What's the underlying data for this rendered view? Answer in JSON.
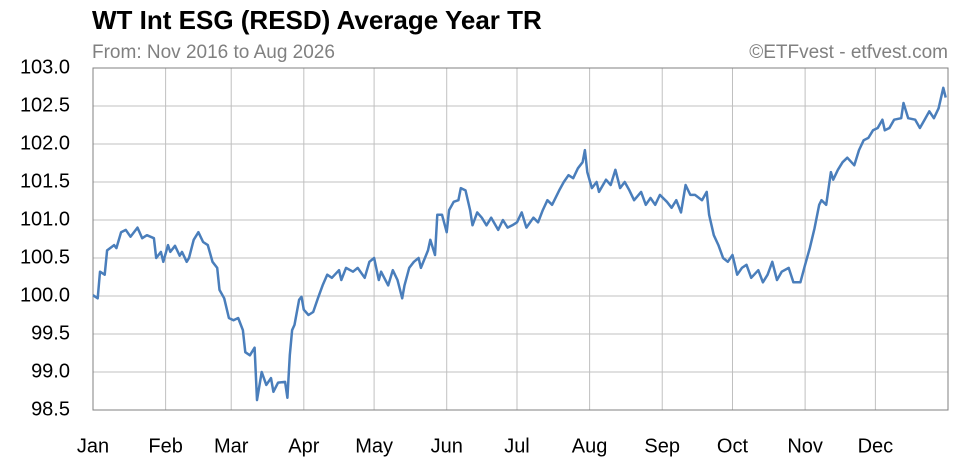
{
  "chart_data": {
    "type": "line",
    "title": "WT Int ESG (RESD) Average Year TR",
    "subtitle": "From: Nov 2016 to Aug 2026",
    "credit": "©ETFvest - etfvest.com",
    "xlim": [
      1,
      366
    ],
    "xticks": [
      {
        "value": 1,
        "label": "Jan"
      },
      {
        "value": 32,
        "label": "Feb"
      },
      {
        "value": 60,
        "label": "Mar"
      },
      {
        "value": 91,
        "label": "Apr"
      },
      {
        "value": 121,
        "label": "May"
      },
      {
        "value": 152,
        "label": "Jun"
      },
      {
        "value": 182,
        "label": "Jul"
      },
      {
        "value": 213,
        "label": "Aug"
      },
      {
        "value": 244,
        "label": "Sep"
      },
      {
        "value": 274,
        "label": "Oct"
      },
      {
        "value": 305,
        "label": "Nov"
      },
      {
        "value": 335,
        "label": "Dec"
      }
    ],
    "ylim": [
      98.5,
      103
    ],
    "yticks": [
      98.5,
      {
        "value": 99,
        "label": "99.0"
      },
      99.5,
      {
        "value": 100,
        "label": "100.0"
      },
      100.5,
      {
        "value": 101,
        "label": "101.0"
      },
      101.5,
      {
        "value": 102,
        "label": "102.0"
      },
      102.5,
      {
        "value": 103,
        "label": "103.0"
      }
    ],
    "grid": true,
    "x": [
      1,
      3,
      4,
      6,
      7,
      10,
      11,
      13,
      15,
      17,
      20,
      22,
      24,
      27,
      28,
      30,
      31,
      33,
      34,
      36,
      38,
      39,
      41,
      42,
      44,
      46,
      48,
      50,
      52,
      54,
      55,
      57,
      59,
      61,
      63,
      65,
      66,
      68,
      70,
      71,
      73,
      75,
      77,
      78,
      80,
      83,
      84,
      85,
      86,
      87,
      89,
      90,
      91,
      93,
      95,
      97,
      99,
      101,
      103,
      106,
      107,
      109,
      112,
      114,
      117,
      119,
      121,
      123,
      124,
      127,
      129,
      131,
      133,
      134,
      136,
      138,
      140,
      141,
      144,
      145,
      147,
      148,
      150,
      152,
      153,
      155,
      157,
      158,
      160,
      162,
      163,
      165,
      167,
      169,
      171,
      174,
      176,
      178,
      180,
      182,
      184,
      186,
      189,
      191,
      193,
      195,
      197,
      200,
      202,
      204,
      206,
      208,
      210,
      211,
      212,
      214,
      216,
      217,
      220,
      222,
      224,
      226,
      228,
      230,
      232,
      235,
      237,
      239,
      241,
      243,
      246,
      248,
      250,
      252,
      254,
      256,
      258,
      261,
      263,
      264,
      266,
      268,
      270,
      272,
      274,
      276,
      278,
      280,
      282,
      285,
      287,
      289,
      291,
      293,
      295,
      298,
      300,
      303,
      305,
      307,
      309,
      311,
      312,
      314,
      316,
      317,
      319,
      321,
      323,
      326,
      328,
      330,
      332,
      334,
      336,
      338,
      339,
      341,
      343,
      346,
      347,
      349,
      352,
      354,
      356,
      358,
      360,
      362,
      364,
      365
    ],
    "series": [
      {
        "name": "RESD",
        "color": "#4a7ebb",
        "values": [
          100.01,
          99.97,
          100.32,
          100.28,
          100.6,
          100.67,
          100.63,
          100.84,
          100.87,
          100.78,
          100.9,
          100.76,
          100.8,
          100.76,
          100.5,
          100.58,
          100.45,
          100.67,
          100.58,
          100.66,
          100.53,
          100.58,
          100.45,
          100.5,
          100.74,
          100.84,
          100.71,
          100.67,
          100.45,
          100.37,
          100.08,
          99.97,
          99.71,
          99.68,
          99.71,
          99.55,
          99.26,
          99.22,
          99.32,
          98.63,
          99.0,
          98.83,
          98.92,
          98.74,
          98.86,
          98.87,
          98.66,
          99.22,
          99.55,
          99.62,
          99.95,
          99.99,
          99.82,
          99.75,
          99.79,
          99.97,
          100.14,
          100.28,
          100.24,
          100.34,
          100.21,
          100.37,
          100.32,
          100.37,
          100.24,
          100.45,
          100.5,
          100.21,
          100.32,
          100.14,
          100.34,
          100.21,
          99.97,
          100.14,
          100.37,
          100.45,
          100.5,
          100.37,
          100.6,
          100.74,
          100.54,
          101.07,
          101.07,
          100.84,
          101.13,
          101.24,
          101.26,
          101.42,
          101.39,
          101.13,
          100.93,
          101.1,
          101.03,
          100.93,
          101.03,
          100.87,
          101.0,
          100.9,
          100.93,
          100.97,
          101.1,
          100.9,
          101.03,
          100.97,
          101.13,
          101.26,
          101.2,
          101.39,
          101.5,
          101.59,
          101.55,
          101.68,
          101.76,
          101.92,
          101.63,
          101.42,
          101.5,
          101.37,
          101.53,
          101.46,
          101.66,
          101.42,
          101.5,
          101.39,
          101.26,
          101.37,
          101.2,
          101.29,
          101.2,
          101.33,
          101.24,
          101.16,
          101.26,
          101.1,
          101.46,
          101.33,
          101.33,
          101.26,
          101.37,
          101.07,
          100.8,
          100.67,
          100.5,
          100.45,
          100.54,
          100.28,
          100.37,
          100.41,
          100.24,
          100.34,
          100.18,
          100.28,
          100.45,
          100.21,
          100.32,
          100.37,
          100.18,
          100.18,
          100.41,
          100.63,
          100.89,
          101.2,
          101.26,
          101.2,
          101.63,
          101.53,
          101.66,
          101.76,
          101.82,
          101.72,
          101.92,
          102.05,
          102.08,
          102.18,
          102.21,
          102.32,
          102.18,
          102.21,
          102.32,
          102.34,
          102.54,
          102.34,
          102.32,
          102.21,
          102.32,
          102.43,
          102.34,
          102.47,
          102.74,
          102.61
        ]
      }
    ]
  }
}
